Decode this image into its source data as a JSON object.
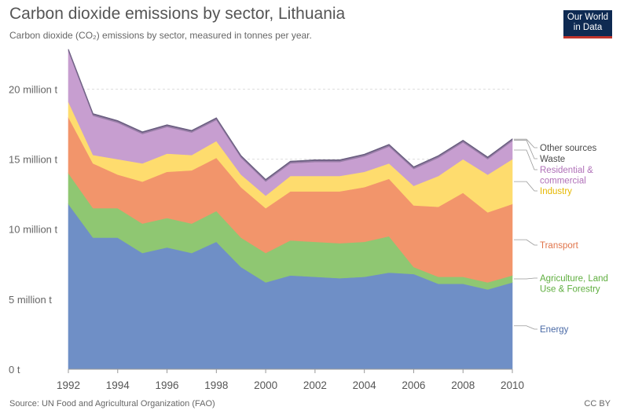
{
  "header": {
    "title": "Carbon dioxide emissions by sector, Lithuania",
    "subtitle": "Carbon dioxide (CO₂) emissions by sector, measured in tonnes per year."
  },
  "logo": {
    "line1": "Our World",
    "line2": "in Data"
  },
  "footer": {
    "source": "Source: UN Food and Agricultural Organization (FAO)",
    "license": "CC BY"
  },
  "colors": {
    "energy": "#6f8fc6",
    "agriculture": "#8fc772",
    "transport": "#f2956b",
    "industry": "#fedc6e",
    "residential": "#c79ed0",
    "waste": "#9a7fa8",
    "other": "#6a5e80",
    "grid": "#dddddd"
  },
  "chart_data": {
    "type": "area",
    "stacked": true,
    "title": "Carbon dioxide emissions by sector, Lithuania",
    "xlabel": "",
    "ylabel": "",
    "xlim": [
      1992,
      2010
    ],
    "ylim": [
      0,
      23
    ],
    "x": [
      1992,
      1993,
      1994,
      1995,
      1996,
      1997,
      1998,
      1999,
      2000,
      2001,
      2002,
      2003,
      2004,
      2005,
      2006,
      2007,
      2008,
      2009,
      2010
    ],
    "x_ticks": [
      "1992",
      "1994",
      "1996",
      "1998",
      "2000",
      "2002",
      "2004",
      "2006",
      "2008",
      "2010"
    ],
    "y_ticks": [
      {
        "value": 0,
        "label": "0 t"
      },
      {
        "value": 5,
        "label": "5 million t"
      },
      {
        "value": 10,
        "label": "10 million t"
      },
      {
        "value": 15,
        "label": "15 million t"
      },
      {
        "value": 20,
        "label": "20 million t"
      }
    ],
    "series": [
      {
        "key": "energy",
        "name": "Energy",
        "values": [
          11.8,
          9.4,
          9.4,
          8.3,
          8.7,
          8.3,
          9.1,
          7.3,
          6.2,
          6.7,
          6.6,
          6.5,
          6.6,
          6.9,
          6.8,
          6.1,
          6.1,
          5.7,
          6.2
        ]
      },
      {
        "key": "agriculture",
        "name": "Agriculture, Land Use & Forestry",
        "values": [
          2.2,
          2.1,
          2.1,
          2.1,
          2.1,
          2.1,
          2.2,
          2.1,
          2.1,
          2.5,
          2.5,
          2.5,
          2.5,
          2.6,
          0.5,
          0.5,
          0.5,
          0.5,
          0.5
        ]
      },
      {
        "key": "transport",
        "name": "Transport",
        "values": [
          4.0,
          3.2,
          2.4,
          3.0,
          3.3,
          3.8,
          3.8,
          3.6,
          3.2,
          3.5,
          3.6,
          3.7,
          3.9,
          4.1,
          4.4,
          5.0,
          6.0,
          5.0,
          5.1
        ]
      },
      {
        "key": "industry",
        "name": "Industry",
        "values": [
          1.1,
          0.6,
          1.1,
          1.3,
          1.3,
          1.1,
          1.2,
          0.9,
          0.9,
          1.1,
          1.1,
          1.1,
          1.1,
          1.1,
          1.4,
          2.2,
          2.4,
          2.7,
          3.2
        ]
      },
      {
        "key": "residential",
        "name": "Residential & commercial",
        "values": [
          3.6,
          2.8,
          2.6,
          2.1,
          1.9,
          1.6,
          1.5,
          1.2,
          1.0,
          0.9,
          1.0,
          1.0,
          1.1,
          1.2,
          1.2,
          1.3,
          1.2,
          1.1,
          1.3
        ]
      },
      {
        "key": "waste",
        "name": "Waste",
        "values": [
          0.1,
          0.1,
          0.1,
          0.1,
          0.1,
          0.1,
          0.1,
          0.1,
          0.1,
          0.1,
          0.1,
          0.1,
          0.1,
          0.1,
          0.1,
          0.1,
          0.1,
          0.1,
          0.1
        ]
      },
      {
        "key": "other",
        "name": "Other sources",
        "values": [
          0.05,
          0.05,
          0.05,
          0.05,
          0.05,
          0.05,
          0.05,
          0.05,
          0.05,
          0.05,
          0.05,
          0.05,
          0.05,
          0.05,
          0.05,
          0.05,
          0.05,
          0.05,
          0.05
        ]
      }
    ],
    "legend": [
      {
        "key": "other",
        "lines": [
          "Other sources"
        ]
      },
      {
        "key": "waste",
        "lines": [
          "Waste"
        ]
      },
      {
        "key": "residential",
        "lines": [
          "Residential &",
          "commercial"
        ]
      },
      {
        "key": "industry",
        "lines": [
          "Industry"
        ]
      },
      {
        "key": "transport",
        "lines": [
          "Transport"
        ]
      },
      {
        "key": "agriculture",
        "lines": [
          "Agriculture, Land",
          "Use & Forestry"
        ]
      },
      {
        "key": "energy",
        "lines": [
          "Energy"
        ]
      }
    ],
    "legend_position": "right"
  }
}
